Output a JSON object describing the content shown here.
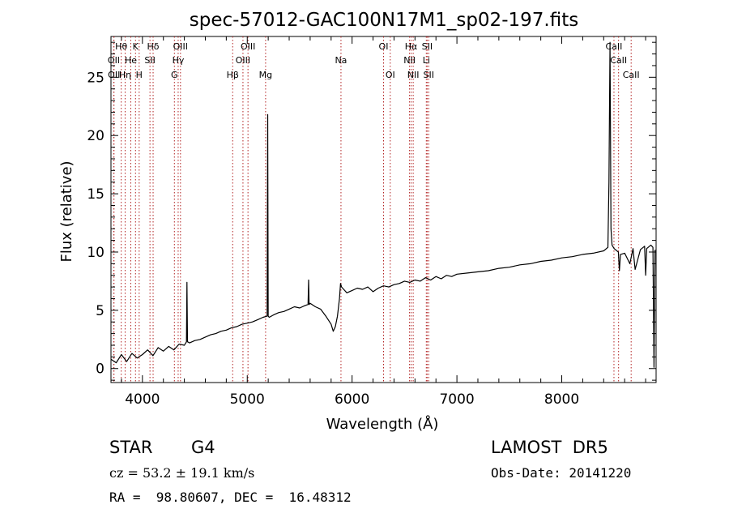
{
  "chart_data": {
    "type": "line",
    "title": "spec-57012-GAC100N17M1_sp02-197.fits",
    "xlabel": "Wavelength (Å)",
    "ylabel": "Flux (relative)",
    "xlim": [
      3700,
      8900
    ],
    "ylim": [
      -1.2,
      28.5
    ],
    "xticks": [
      4000,
      5000,
      6000,
      7000,
      8000
    ],
    "yticks": [
      0,
      5,
      10,
      15,
      20,
      25
    ],
    "xtick_labels": [
      "4000",
      "5000",
      "6000",
      "7000",
      "8000"
    ],
    "ytick_labels": [
      "0",
      "5",
      "10",
      "15",
      "20",
      "25"
    ],
    "grid": false,
    "series": [
      {
        "color": "#000000",
        "x": [
          3700,
          3750,
          3800,
          3850,
          3900,
          3950,
          4000,
          4050,
          4100,
          4150,
          4200,
          4250,
          4300,
          4350,
          4400,
          4420,
          4425,
          4430,
          4450,
          4500,
          4550,
          4600,
          4650,
          4700,
          4750,
          4800,
          4850,
          4900,
          4950,
          5000,
          5050,
          5100,
          5150,
          5190,
          5195,
          5200,
          5210,
          5250,
          5300,
          5350,
          5400,
          5450,
          5500,
          5550,
          5580,
          5585,
          5590,
          5600,
          5650,
          5700,
          5750,
          5800,
          5820,
          5840,
          5860,
          5880,
          5890,
          5900,
          5920,
          5950,
          6000,
          6050,
          6100,
          6150,
          6200,
          6250,
          6300,
          6350,
          6400,
          6450,
          6500,
          6550,
          6600,
          6650,
          6700,
          6750,
          6800,
          6850,
          6900,
          6950,
          7000,
          7100,
          7200,
          7300,
          7400,
          7500,
          7600,
          7700,
          7800,
          7900,
          8000,
          8100,
          8200,
          8300,
          8400,
          8440,
          8450,
          8460,
          8470,
          8480,
          8500,
          8540,
          8550,
          8560,
          8600,
          8650,
          8680,
          8700,
          8750,
          8790,
          8800,
          8810,
          8850,
          8870,
          8880,
          8890
        ],
        "y": [
          0.8,
          0.5,
          1.2,
          0.6,
          1.3,
          0.9,
          1.2,
          1.6,
          1.1,
          1.8,
          1.5,
          1.9,
          1.6,
          2.1,
          2.0,
          2.3,
          7.4,
          2.3,
          2.2,
          2.4,
          2.5,
          2.7,
          2.9,
          3.0,
          3.2,
          3.3,
          3.5,
          3.6,
          3.8,
          3.9,
          4.0,
          4.2,
          4.4,
          4.5,
          21.8,
          4.5,
          4.4,
          4.6,
          4.8,
          4.9,
          5.1,
          5.3,
          5.2,
          5.4,
          5.5,
          7.6,
          5.5,
          5.6,
          5.3,
          5.1,
          4.5,
          3.8,
          3.2,
          3.6,
          4.5,
          6.0,
          7.3,
          7.0,
          6.8,
          6.5,
          6.7,
          6.9,
          6.8,
          7.0,
          6.6,
          6.9,
          7.1,
          7.0,
          7.2,
          7.3,
          7.5,
          7.4,
          7.6,
          7.5,
          7.8,
          7.6,
          7.9,
          7.7,
          8.0,
          7.9,
          8.1,
          8.2,
          8.3,
          8.4,
          8.6,
          8.7,
          8.9,
          9.0,
          9.2,
          9.3,
          9.5,
          9.6,
          9.8,
          9.9,
          10.1,
          10.4,
          16.0,
          28.0,
          12.0,
          10.6,
          10.3,
          10.0,
          8.4,
          9.8,
          9.9,
          9.0,
          10.3,
          8.5,
          10.2,
          10.5,
          8.0,
          10.3,
          10.6,
          10.4,
          0.1,
          10.2
        ]
      }
    ],
    "lines": [
      {
        "name": "Hθ",
        "x": 3798,
        "row": 0
      },
      {
        "name": "OII",
        "x": 3727,
        "row": 1
      },
      {
        "name": "OII",
        "x": 3729,
        "row": 2
      },
      {
        "name": "Hη",
        "x": 3835,
        "row": 2
      },
      {
        "name": "He",
        "x": 3889,
        "row": 1
      },
      {
        "name": "K",
        "x": 3934,
        "row": 0
      },
      {
        "name": "H",
        "x": 3969,
        "row": 2
      },
      {
        "name": "Hδ",
        "x": 4102,
        "row": 0
      },
      {
        "name": "SII",
        "x": 4072,
        "row": 1
      },
      {
        "name": "OIII",
        "x": 4363,
        "row": 0
      },
      {
        "name": "Hγ",
        "x": 4341,
        "row": 1
      },
      {
        "name": "G",
        "x": 4305,
        "row": 2
      },
      {
        "name": "Hβ",
        "x": 4861,
        "row": 2
      },
      {
        "name": "OIII",
        "x": 4959,
        "row": 1
      },
      {
        "name": "OIII",
        "x": 5007,
        "row": 0
      },
      {
        "name": "Mg",
        "x": 5175,
        "row": 2
      },
      {
        "name": "Na",
        "x": 5894,
        "row": 1
      },
      {
        "name": "OI",
        "x": 6300,
        "row": 0
      },
      {
        "name": "OI",
        "x": 6364,
        "row": 2
      },
      {
        "name": "Hα",
        "x": 6563,
        "row": 0
      },
      {
        "name": "NII",
        "x": 6548,
        "row": 1
      },
      {
        "name": "NII",
        "x": 6583,
        "row": 2
      },
      {
        "name": "SII",
        "x": 6716,
        "row": 0
      },
      {
        "name": "Li",
        "x": 6708,
        "row": 1
      },
      {
        "name": "SII",
        "x": 6731,
        "row": 2
      },
      {
        "name": "CaII",
        "x": 8498,
        "row": 0
      },
      {
        "name": "CaII",
        "x": 8542,
        "row": 1
      },
      {
        "name": "CaII",
        "x": 8662,
        "row": 2
      }
    ],
    "line_color": "#b22222"
  },
  "info": {
    "class_label": "STAR",
    "subclass_label": "G4",
    "survey_label": "LAMOST  DR5",
    "cz_text": "cz = 53.2 ± 19.1 km/s",
    "obs_date_text": "Obs-Date: 20141220",
    "coords_text": "RA =  98.80607, DEC =  16.48312"
  }
}
